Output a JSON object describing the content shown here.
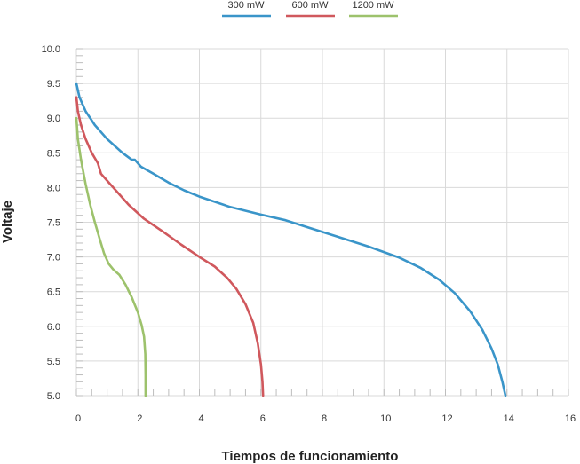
{
  "chart_data": {
    "type": "line",
    "title": "",
    "xlabel": "Tiempos de funcionamiento",
    "ylabel": "Voltaje",
    "xlim": [
      0,
      16
    ],
    "ylim": [
      5.0,
      10.0
    ],
    "x_ticks": [
      "0",
      "2",
      "4",
      "6",
      "8",
      "10",
      "12",
      "14",
      "16"
    ],
    "y_ticks": [
      "5.0",
      "5.5",
      "6.0",
      "6.5",
      "7.0",
      "7.5",
      "8.0",
      "8.5",
      "9.0",
      "9.5",
      "10.0"
    ],
    "grid": true,
    "legend_position": "top",
    "series": [
      {
        "name": "300 mW",
        "color": "#3a95c9",
        "points": [
          [
            0,
            9.5
          ],
          [
            0.1,
            9.3
          ],
          [
            0.3,
            9.1
          ],
          [
            0.6,
            8.9
          ],
          [
            1.0,
            8.7
          ],
          [
            1.5,
            8.5
          ],
          [
            1.8,
            8.4
          ],
          [
            1.9,
            8.4
          ],
          [
            2.1,
            8.3
          ],
          [
            2.5,
            8.2
          ],
          [
            3.0,
            8.07
          ],
          [
            3.5,
            7.96
          ],
          [
            4.0,
            7.87
          ],
          [
            5.0,
            7.72
          ],
          [
            6.0,
            7.61
          ],
          [
            6.8,
            7.53
          ],
          [
            7.5,
            7.43
          ],
          [
            8.5,
            7.29
          ],
          [
            9.5,
            7.15
          ],
          [
            10.5,
            6.99
          ],
          [
            11.2,
            6.84
          ],
          [
            11.8,
            6.67
          ],
          [
            12.3,
            6.48
          ],
          [
            12.8,
            6.22
          ],
          [
            13.2,
            5.95
          ],
          [
            13.5,
            5.68
          ],
          [
            13.7,
            5.45
          ],
          [
            13.85,
            5.2
          ],
          [
            13.95,
            5.0
          ]
        ]
      },
      {
        "name": "600 mW",
        "color": "#d0585d",
        "points": [
          [
            0,
            9.3
          ],
          [
            0.05,
            9.1
          ],
          [
            0.15,
            8.9
          ],
          [
            0.3,
            8.7
          ],
          [
            0.5,
            8.5
          ],
          [
            0.7,
            8.35
          ],
          [
            0.8,
            8.2
          ],
          [
            1.0,
            8.1
          ],
          [
            1.3,
            7.95
          ],
          [
            1.7,
            7.75
          ],
          [
            2.2,
            7.55
          ],
          [
            2.8,
            7.37
          ],
          [
            3.4,
            7.18
          ],
          [
            4.0,
            7.0
          ],
          [
            4.5,
            6.86
          ],
          [
            4.9,
            6.7
          ],
          [
            5.2,
            6.54
          ],
          [
            5.5,
            6.32
          ],
          [
            5.75,
            6.05
          ],
          [
            5.9,
            5.75
          ],
          [
            6.0,
            5.45
          ],
          [
            6.05,
            5.2
          ],
          [
            6.07,
            5.0
          ]
        ]
      },
      {
        "name": "1200 mW",
        "color": "#9dc26c",
        "points": [
          [
            0,
            9.0
          ],
          [
            0.05,
            8.7
          ],
          [
            0.15,
            8.4
          ],
          [
            0.3,
            8.05
          ],
          [
            0.45,
            7.75
          ],
          [
            0.6,
            7.5
          ],
          [
            0.75,
            7.27
          ],
          [
            0.9,
            7.05
          ],
          [
            1.05,
            6.9
          ],
          [
            1.2,
            6.82
          ],
          [
            1.4,
            6.74
          ],
          [
            1.6,
            6.6
          ],
          [
            1.8,
            6.42
          ],
          [
            2.0,
            6.2
          ],
          [
            2.12,
            6.02
          ],
          [
            2.2,
            5.85
          ],
          [
            2.24,
            5.6
          ],
          [
            2.25,
            5.3
          ],
          [
            2.25,
            5.0
          ]
        ]
      }
    ]
  }
}
